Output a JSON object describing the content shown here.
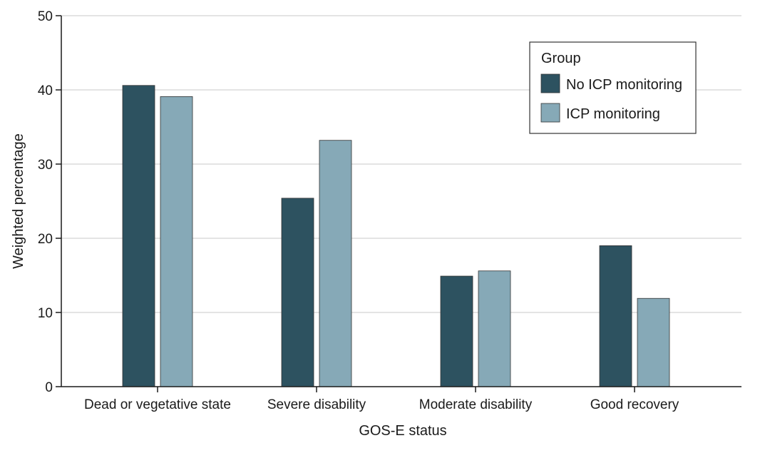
{
  "chart_data": {
    "type": "bar",
    "categories": [
      "Dead or vegetative state",
      "Severe disability",
      "Moderate disability",
      "Good recovery"
    ],
    "series": [
      {
        "name": "No ICP monitoring",
        "values": [
          40.6,
          25.4,
          14.9,
          19.0
        ],
        "color": "#2d5260"
      },
      {
        "name": "ICP monitoring",
        "values": [
          39.1,
          33.2,
          15.6,
          11.9
        ],
        "color": "#86a9b7"
      }
    ],
    "xlabel": "GOS-E status",
    "ylabel": "Weighted percentage",
    "ylim": [
      0,
      50
    ],
    "yticks": [
      0,
      10,
      20,
      30,
      40,
      50
    ],
    "grid": true,
    "legend": {
      "title": "Group",
      "position": "top-right"
    }
  }
}
